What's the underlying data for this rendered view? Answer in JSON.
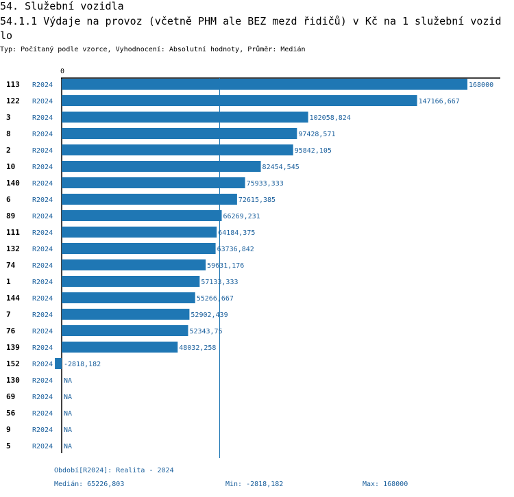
{
  "header": {
    "section_title": "54. Služební vozidla",
    "chart_title": "54.1.1 Výdaje na provoz (včetně PHM ale BEZ mezd řidičů) v Kč na 1 služební vozidlo",
    "meta": "Typ: Počítaný podle vzorce, Vyhodnocení: Absolutní hodnoty, Průměr: Medián"
  },
  "colors": {
    "bar": "#1f77b4",
    "label": "#1a5f9c",
    "axis": "#000000"
  },
  "chart_data": {
    "type": "bar",
    "orientation": "horizontal",
    "title": "54.1.1 Výdaje na provoz (včetně PHM ale BEZ mezd řidičů) v Kč na 1 služební vozidlo",
    "xlim": [
      0,
      168000
    ],
    "zero_tick_label": "0",
    "median_line": 65226.803,
    "rows": [
      {
        "id": "113",
        "period": "R2024",
        "value": 168000,
        "label": "168000"
      },
      {
        "id": "122",
        "period": "R2024",
        "value": 147166.667,
        "label": "147166,667"
      },
      {
        "id": "3",
        "period": "R2024",
        "value": 102058.824,
        "label": "102058,824"
      },
      {
        "id": "8",
        "period": "R2024",
        "value": 97428.571,
        "label": "97428,571"
      },
      {
        "id": "2",
        "period": "R2024",
        "value": 95842.105,
        "label": "95842,105"
      },
      {
        "id": "10",
        "period": "R2024",
        "value": 82454.545,
        "label": "82454,545"
      },
      {
        "id": "140",
        "period": "R2024",
        "value": 75933.333,
        "label": "75933,333"
      },
      {
        "id": "6",
        "period": "R2024",
        "value": 72615.385,
        "label": "72615,385"
      },
      {
        "id": "89",
        "period": "R2024",
        "value": 66269.231,
        "label": "66269,231"
      },
      {
        "id": "111",
        "period": "R2024",
        "value": 64184.375,
        "label": "64184,375"
      },
      {
        "id": "132",
        "period": "R2024",
        "value": 63736.842,
        "label": "63736,842"
      },
      {
        "id": "74",
        "period": "R2024",
        "value": 59631.176,
        "label": "59631,176"
      },
      {
        "id": "1",
        "period": "R2024",
        "value": 57133.333,
        "label": "57133,333"
      },
      {
        "id": "144",
        "period": "R2024",
        "value": 55266.667,
        "label": "55266,667"
      },
      {
        "id": "7",
        "period": "R2024",
        "value": 52902.439,
        "label": "52902,439"
      },
      {
        "id": "76",
        "period": "R2024",
        "value": 52343.75,
        "label": "52343,75"
      },
      {
        "id": "139",
        "period": "R2024",
        "value": 48032.258,
        "label": "48032,258"
      },
      {
        "id": "152",
        "period": "R2024",
        "value": -2818.182,
        "label": "-2818,182"
      },
      {
        "id": "130",
        "period": "R2024",
        "value": null,
        "label": "NA"
      },
      {
        "id": "69",
        "period": "R2024",
        "value": null,
        "label": "NA"
      },
      {
        "id": "56",
        "period": "R2024",
        "value": null,
        "label": "NA"
      },
      {
        "id": "9",
        "period": "R2024",
        "value": null,
        "label": "NA"
      },
      {
        "id": "5",
        "period": "R2024",
        "value": null,
        "label": "NA"
      }
    ]
  },
  "footer": {
    "period_note": "Období[R2024]: Realita - 2024",
    "median": "Medián: 65226,803",
    "min": "Min: -2818,182",
    "max": "Max: 168000"
  }
}
